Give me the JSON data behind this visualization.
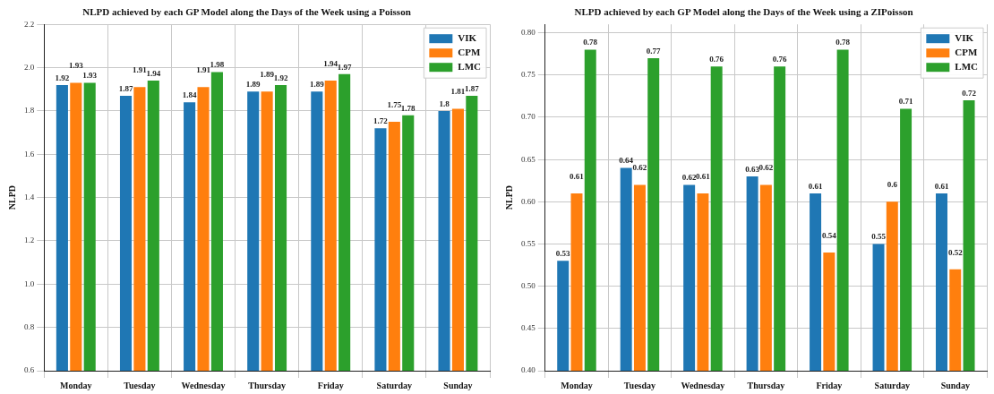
{
  "chart_data": [
    {
      "type": "bar",
      "title": "NLPD achieved by each GP Model along the Days of the Week using a Poisson",
      "ylabel": "NLPD",
      "categories": [
        "Monday",
        "Tuesday",
        "Wednesday",
        "Thursday",
        "Friday",
        "Saturday",
        "Sunday"
      ],
      "series": [
        {
          "name": "VIK",
          "color": "#1f77b4",
          "values": [
            1.92,
            1.87,
            1.84,
            1.89,
            1.89,
            1.72,
            1.8
          ]
        },
        {
          "name": "CPM",
          "color": "#ff7f0e",
          "values": [
            1.93,
            1.91,
            1.91,
            1.89,
            1.94,
            1.75,
            1.81
          ]
        },
        {
          "name": "LMC",
          "color": "#2ca02c",
          "values": [
            1.93,
            1.94,
            1.98,
            1.92,
            1.97,
            1.78,
            1.87
          ]
        }
      ],
      "ylim": [
        0.6,
        2.2
      ],
      "yticks": [
        0.6,
        0.8,
        {
          "value": 1,
          "label": "1.0"
        },
        1.2,
        1.4,
        1.6,
        1.8,
        {
          "value": 2,
          "label": "2.0"
        },
        2.2
      ],
      "grid": true,
      "legend": "top right",
      "data_labels": true
    },
    {
      "type": "bar",
      "title": "NLPD achieved by each GP Model along the Days of the Week using a ZIPoisson",
      "ylabel": "NLPD",
      "categories": [
        "Monday",
        "Tuesday",
        "Wednesday",
        "Thursday",
        "Friday",
        "Saturday",
        "Sunday"
      ],
      "series": [
        {
          "name": "VIK",
          "color": "#1f77b4",
          "values": [
            0.53,
            0.64,
            0.62,
            0.63,
            0.61,
            0.55,
            0.61
          ]
        },
        {
          "name": "CPM",
          "color": "#ff7f0e",
          "values": [
            0.61,
            0.62,
            0.61,
            0.62,
            0.54,
            0.6,
            0.52
          ]
        },
        {
          "name": "LMC",
          "color": "#2ca02c",
          "values": [
            0.78,
            0.77,
            0.76,
            0.76,
            0.78,
            0.71,
            0.72
          ]
        }
      ],
      "ylim": [
        0.4,
        0.81
      ],
      "yticks": [
        {
          "value": 0.4,
          "label": "0.40"
        },
        {
          "value": 0.45,
          "label": "0.45"
        },
        {
          "value": 0.5,
          "label": "0.50"
        },
        {
          "value": 0.55,
          "label": "0.55"
        },
        {
          "value": 0.6,
          "label": "0.60"
        },
        {
          "value": 0.65,
          "label": "0.65"
        },
        {
          "value": 0.7,
          "label": "0.70"
        },
        {
          "value": 0.75,
          "label": "0.75"
        },
        {
          "value": 0.8,
          "label": "0.80"
        }
      ],
      "grid": true,
      "legend": "top right",
      "data_labels": true
    }
  ]
}
